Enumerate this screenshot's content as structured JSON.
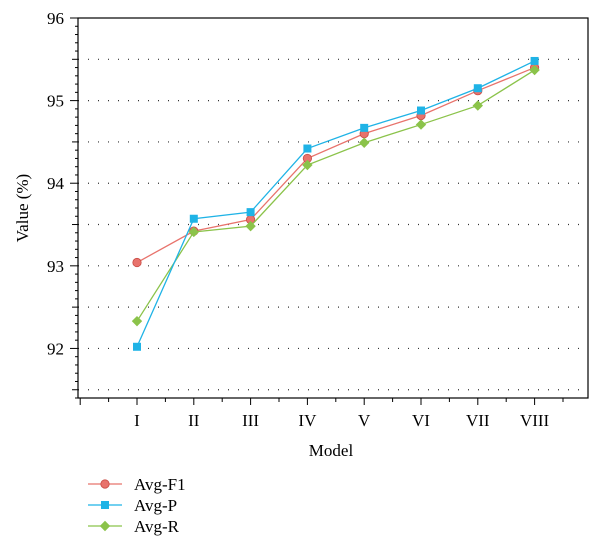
{
  "chart_data": {
    "type": "line",
    "xlabel": "Model",
    "ylabel": "Value (%)",
    "categories": [
      "I",
      "II",
      "III",
      "IV",
      "V",
      "VI",
      "VII",
      "VIII"
    ],
    "ylim": [
      91.4,
      96
    ],
    "yticks": [
      92,
      93,
      94,
      95,
      96
    ],
    "grid": "dotted-horizontal",
    "legend_position": "bottom-left",
    "series": [
      {
        "name": "Avg-F1",
        "color": "#e8736c",
        "marker": "circle",
        "values": [
          93.04,
          93.42,
          93.56,
          94.3,
          94.6,
          94.82,
          95.12,
          95.4
        ]
      },
      {
        "name": "Avg-P",
        "color": "#1fb3e6",
        "marker": "square",
        "values": [
          92.02,
          93.57,
          93.65,
          94.42,
          94.67,
          94.88,
          95.15,
          95.48
        ]
      },
      {
        "name": "Avg-R",
        "color": "#8bc34a",
        "marker": "diamond",
        "values": [
          92.33,
          93.41,
          93.48,
          94.22,
          94.49,
          94.71,
          94.94,
          95.37
        ]
      }
    ]
  }
}
